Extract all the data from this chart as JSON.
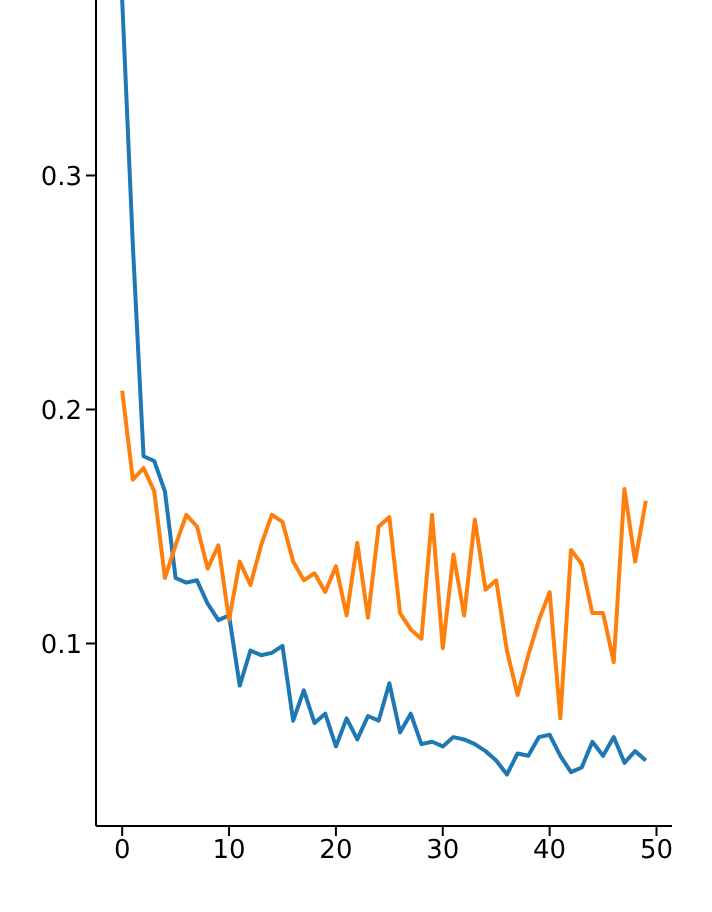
{
  "chart_data": {
    "type": "line",
    "x": [
      0,
      1,
      2,
      3,
      4,
      5,
      6,
      7,
      8,
      9,
      10,
      11,
      12,
      13,
      14,
      15,
      16,
      17,
      18,
      19,
      20,
      21,
      22,
      23,
      24,
      25,
      26,
      27,
      28,
      29,
      30,
      31,
      32,
      33,
      34,
      35,
      36,
      37,
      38,
      39,
      40,
      41,
      42,
      43,
      44,
      45,
      46,
      47,
      48,
      49
    ],
    "series": [
      {
        "color": "#1f77b4",
        "values": [
          0.375,
          0.27,
          0.18,
          0.178,
          0.165,
          0.128,
          0.126,
          0.127,
          0.117,
          0.11,
          0.112,
          0.082,
          0.097,
          0.095,
          0.096,
          0.099,
          0.067,
          0.08,
          0.066,
          0.07,
          0.056,
          0.068,
          0.059,
          0.069,
          0.067,
          0.083,
          0.062,
          0.07,
          0.057,
          0.058,
          0.056,
          0.06,
          0.059,
          0.057,
          0.054,
          0.05,
          0.044,
          0.053,
          0.052,
          0.06,
          0.061,
          0.052,
          0.045,
          0.047,
          0.058,
          0.052,
          0.06,
          0.049,
          0.054,
          0.05
        ]
      },
      {
        "color": "#ff7f0e",
        "values": [
          0.208,
          0.17,
          0.175,
          0.165,
          0.128,
          0.142,
          0.155,
          0.15,
          0.132,
          0.142,
          0.11,
          0.135,
          0.125,
          0.142,
          0.155,
          0.152,
          0.135,
          0.127,
          0.13,
          0.122,
          0.133,
          0.112,
          0.143,
          0.111,
          0.15,
          0.154,
          0.113,
          0.106,
          0.102,
          0.155,
          0.098,
          0.138,
          0.112,
          0.153,
          0.123,
          0.127,
          0.097,
          0.078,
          0.095,
          0.11,
          0.122,
          0.068,
          0.14,
          0.134,
          0.113,
          0.113,
          0.092,
          0.166,
          0.135,
          0.161
        ]
      }
    ],
    "xlim": [
      -2.45,
      51.45
    ],
    "xticks": [
      0,
      10,
      20,
      30,
      40,
      50
    ],
    "ylim": [
      0.022,
      0.375
    ],
    "yticks": [
      0.1,
      0.2,
      0.3
    ],
    "grid": false,
    "marker": "none",
    "line_style": "solid"
  }
}
